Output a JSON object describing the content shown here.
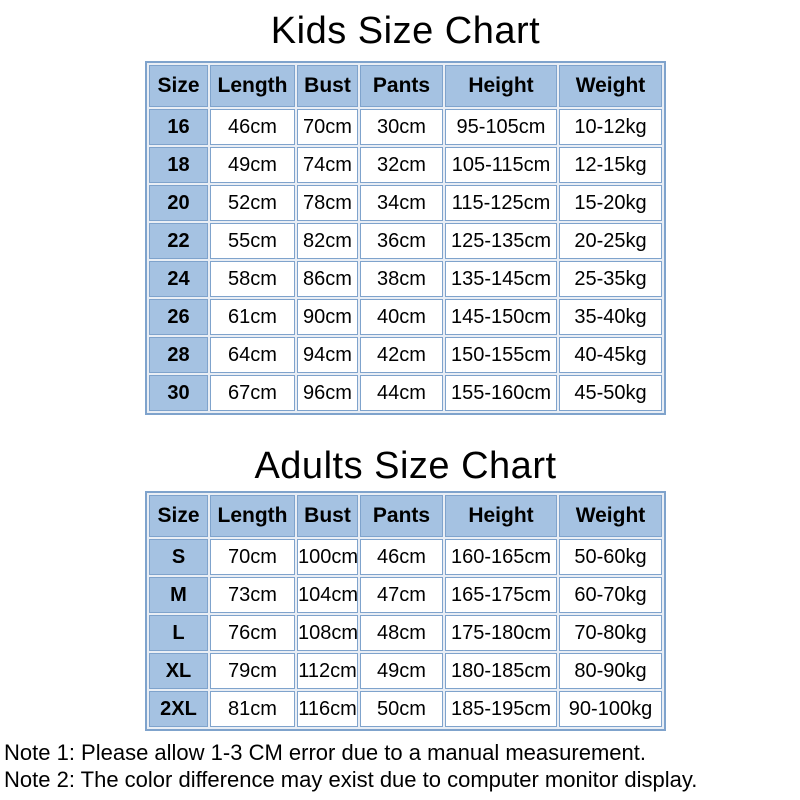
{
  "colors": {
    "header_fill": "#a5c2e2",
    "grid_border": "#7fa3cc",
    "cell_gap": "#e9eef5",
    "cell_fill": "#ffffff",
    "text": "#000000",
    "page_background": "#ffffff"
  },
  "chart_data": [
    {
      "type": "table",
      "title": "Kids Size Chart",
      "columns": [
        "Size",
        "Length",
        "Bust",
        "Pants",
        "Height",
        "Weight"
      ],
      "rows": [
        [
          "16",
          "46cm",
          "70cm",
          "30cm",
          "95-105cm",
          "10-12kg"
        ],
        [
          "18",
          "49cm",
          "74cm",
          "32cm",
          "105-115cm",
          "12-15kg"
        ],
        [
          "20",
          "52cm",
          "78cm",
          "34cm",
          "115-125cm",
          "15-20kg"
        ],
        [
          "22",
          "55cm",
          "82cm",
          "36cm",
          "125-135cm",
          "20-25kg"
        ],
        [
          "24",
          "58cm",
          "86cm",
          "38cm",
          "135-145cm",
          "25-35kg"
        ],
        [
          "26",
          "61cm",
          "90cm",
          "40cm",
          "145-150cm",
          "35-40kg"
        ],
        [
          "28",
          "64cm",
          "94cm",
          "42cm",
          "150-155cm",
          "40-45kg"
        ],
        [
          "30",
          "67cm",
          "96cm",
          "44cm",
          "155-160cm",
          "45-50kg"
        ]
      ]
    },
    {
      "type": "table",
      "title": "Adults Size Chart",
      "columns": [
        "Size",
        "Length",
        "Bust",
        "Pants",
        "Height",
        "Weight"
      ],
      "rows": [
        [
          "S",
          "70cm",
          "100cm",
          "46cm",
          "160-165cm",
          "50-60kg"
        ],
        [
          "M",
          "73cm",
          "104cm",
          "47cm",
          "165-175cm",
          "60-70kg"
        ],
        [
          "L",
          "76cm",
          "108cm",
          "48cm",
          "175-180cm",
          "70-80kg"
        ],
        [
          "XL",
          "79cm",
          "112cm",
          "49cm",
          "180-185cm",
          "80-90kg"
        ],
        [
          "2XL",
          "81cm",
          "116cm",
          "50cm",
          "185-195cm",
          "90-100kg"
        ]
      ]
    }
  ],
  "notes": [
    "Note 1: Please allow 1-3 CM error due to a manual measurement.",
    "Note 2: The color difference may exist due to computer monitor display."
  ]
}
